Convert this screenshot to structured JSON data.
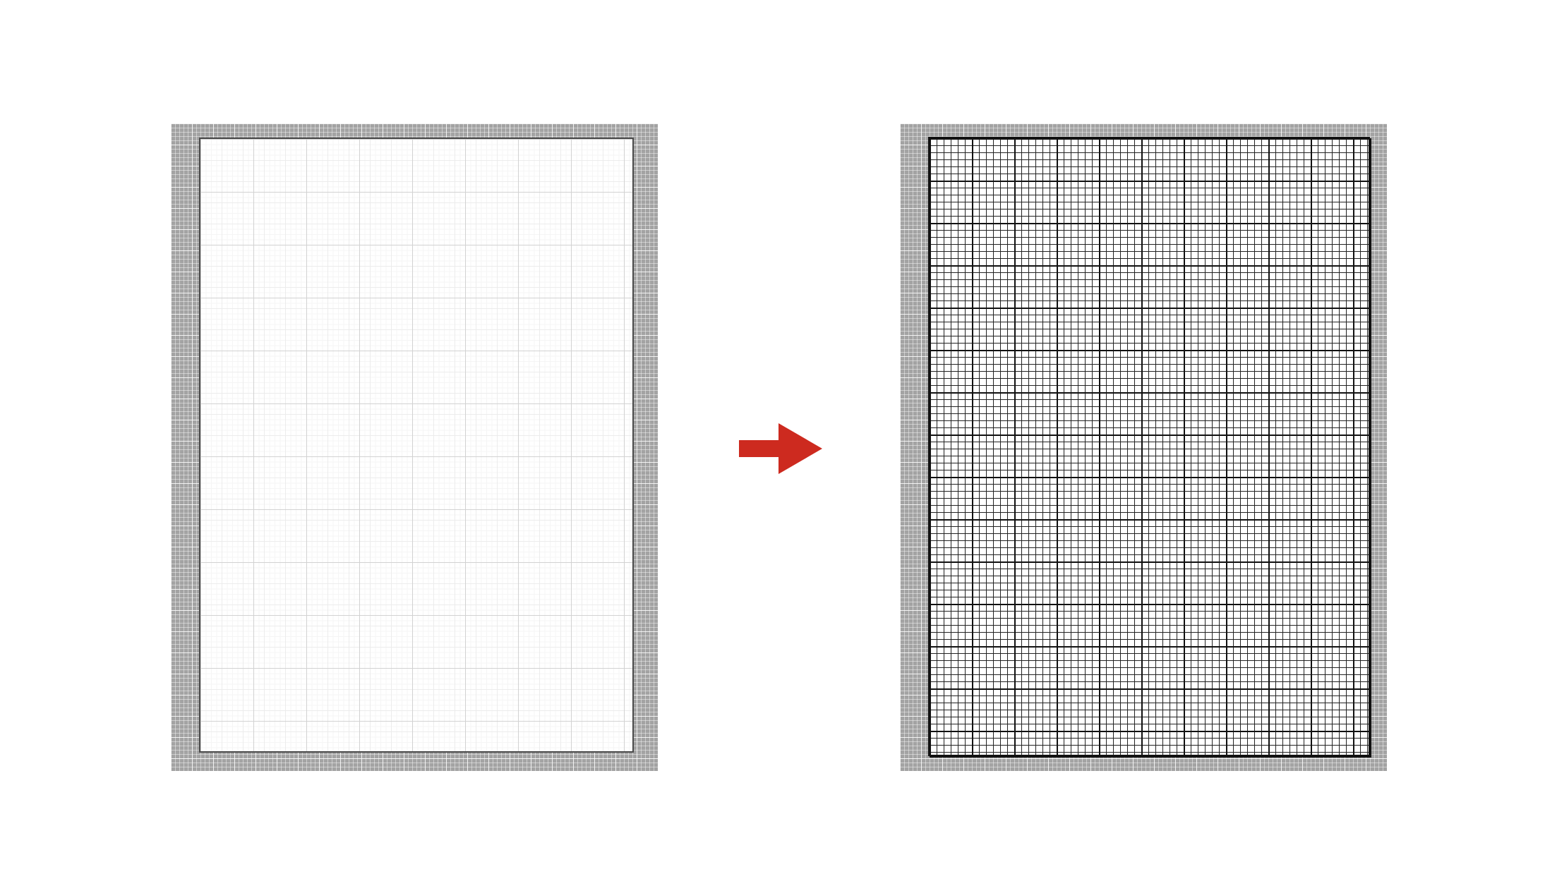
{
  "diagram": {
    "type": "before-after-transformation",
    "colors": {
      "background": "#ffffff",
      "panel_frame": "#a3a3a3",
      "before_grid": "#d2d2d2",
      "after_grid": "#111111",
      "arrow": "#cd2a1f"
    },
    "before": {
      "grid_style": "faint light-gray grid lines on white sheet"
    },
    "after": {
      "grid_style": "dense black grid lines on white sheet"
    },
    "arrow": {
      "icon": "right-arrow-icon",
      "direction": "right"
    }
  }
}
